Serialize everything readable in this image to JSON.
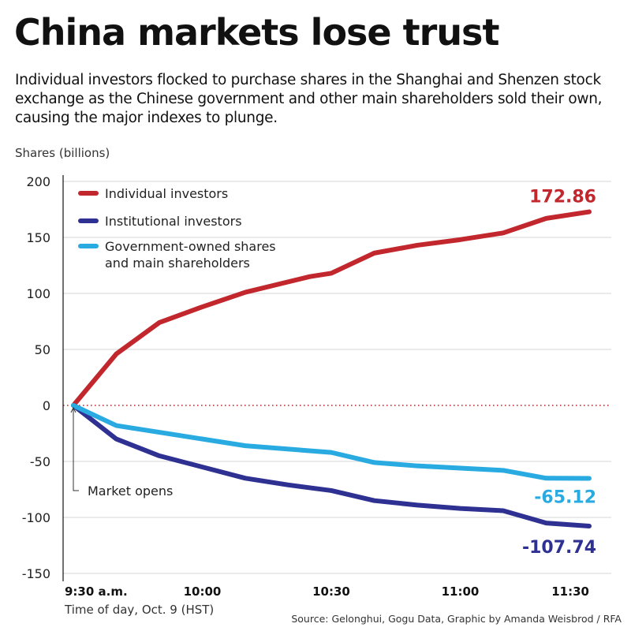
{
  "title": "China markets lose trust",
  "subtitle": "Individual investors flocked to purchase shares in the Shanghai and Shenzen stock exchange as the Chinese government and other main shareholders sold their own, causing the major indexes to plunge.",
  "source": "Source: Gelonghui, Gogu Data, Graphic by Amanda Weisbrod / RFA",
  "chart_data": {
    "type": "line",
    "ylabel": "Shares (billions)",
    "xlabel": "Time of day, Oct. 9 (HST)",
    "ylim": [
      -150,
      200
    ],
    "yticks": [
      200,
      150,
      100,
      50,
      0,
      -50,
      -100,
      -150
    ],
    "xticks": [
      {
        "minute": 0,
        "label": "9:30 a.m."
      },
      {
        "minute": 30,
        "label": "10:00"
      },
      {
        "minute": 60,
        "label": "10:30"
      },
      {
        "minute": 90,
        "label": "11:00"
      },
      {
        "minute": 120,
        "label": "11:30"
      }
    ],
    "x_unit": "minutes after 9:30 a.m.",
    "grid": "horizontal",
    "legend_position": "top-left",
    "zero_line": "dotted",
    "annotation": "Market opens",
    "series": [
      {
        "name": "Individual investors",
        "color": "#c1272d",
        "end_label": "172.86",
        "x": [
          0,
          10,
          20,
          30,
          40,
          55,
          60,
          70,
          80,
          90,
          100,
          110,
          120
        ],
        "y": [
          0,
          46,
          74,
          88,
          101,
          115,
          118,
          136,
          143,
          148,
          154,
          167,
          172.86
        ]
      },
      {
        "name": "Institutional investors",
        "color": "#2e3192",
        "end_label": "-107.74",
        "x": [
          0,
          10,
          20,
          40,
          50,
          60,
          70,
          80,
          90,
          100,
          110,
          120
        ],
        "y": [
          0,
          -30,
          -45,
          -65,
          -71,
          -76,
          -85,
          -89,
          -92,
          -94,
          -105,
          -107.74
        ]
      },
      {
        "name": "Government-owned shares and main shareholders",
        "legend_lines": [
          "Government-owned shares",
          "and main shareholders"
        ],
        "color": "#29abe2",
        "end_label": "-65.12",
        "x": [
          0,
          10,
          20,
          40,
          60,
          70,
          80,
          90,
          100,
          110,
          120
        ],
        "y": [
          0,
          -18,
          -24,
          -36,
          -42,
          -51,
          -54,
          -56,
          -58,
          -65,
          -65.12
        ]
      }
    ]
  }
}
